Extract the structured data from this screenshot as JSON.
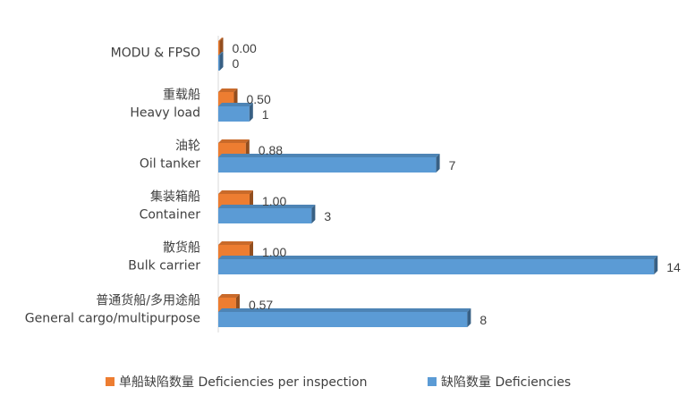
{
  "chart_data": {
    "type": "bar",
    "orientation": "horizontal",
    "style": "3d",
    "categories": [
      "MODU & FPSO",
      "重载船\nHeavy load",
      "油轮\nOil tanker",
      "集装箱船\nContainer",
      "散货船\nBulk carrier",
      "普通货船/多用途船\nGeneral cargo/multipurpose"
    ],
    "series": [
      {
        "name": "单船缺陷数量 Deficiencies per inspection",
        "color": "#ED7D31",
        "values": [
          0.0,
          0.5,
          0.88,
          1.0,
          1.0,
          0.57
        ],
        "labels": [
          "0.00",
          "0.50",
          "0.88",
          "1.00",
          "1.00",
          "0.57"
        ]
      },
      {
        "name": "缺陷数量 Deficiencies",
        "color": "#5B9BD5",
        "values": [
          0,
          1,
          7,
          3,
          14,
          8
        ],
        "labels": [
          "0",
          "1",
          "7",
          "3",
          "14",
          "8"
        ]
      }
    ],
    "xlim": [
      0,
      14
    ],
    "grid": false,
    "legend": "bottom"
  }
}
